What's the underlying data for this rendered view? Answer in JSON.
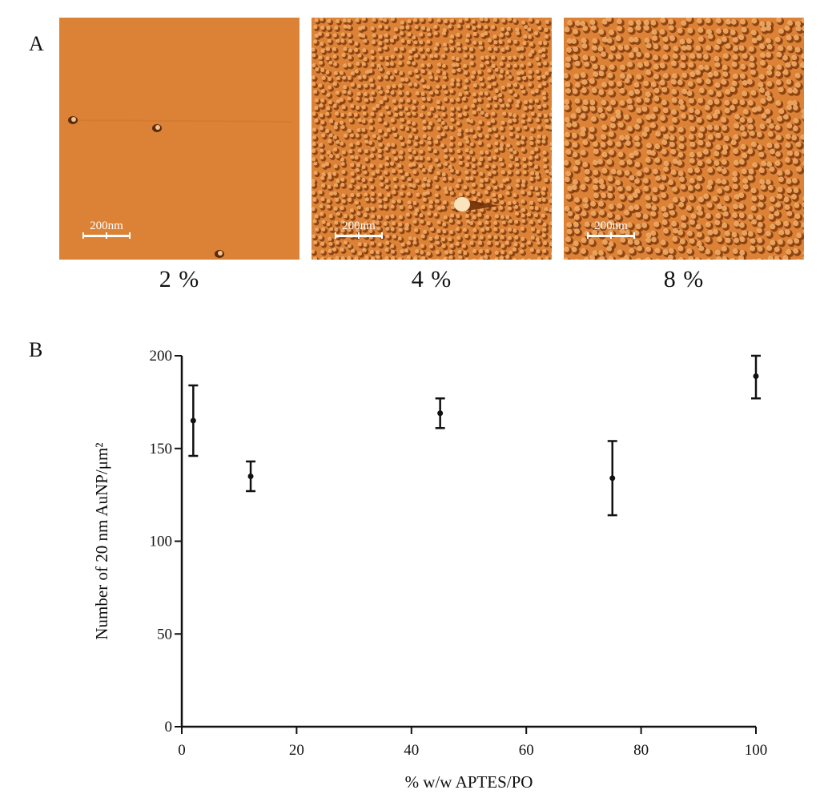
{
  "panel_a": {
    "letter": "A",
    "images": [
      {
        "caption": "2 %",
        "scale_label": "200nm",
        "texture": "sparse"
      },
      {
        "caption": "4 %",
        "scale_label": "200nm",
        "texture": "medium"
      },
      {
        "caption": "8 %",
        "scale_label": "200nm",
        "texture": "dense"
      }
    ],
    "image_color": "#dc8237"
  },
  "panel_b": {
    "letter": "B"
  },
  "chart_data": {
    "type": "scatter",
    "title": "",
    "xlabel": "% w/w APTES/PO",
    "ylabel": "Number of 20 nm AuNP/μm²",
    "xlim": [
      0,
      100
    ],
    "ylim": [
      0,
      200
    ],
    "xticks": [
      0,
      20,
      40,
      60,
      80,
      100
    ],
    "yticks": [
      0,
      50,
      100,
      150,
      200
    ],
    "grid": false,
    "series": [
      {
        "x": [
          2,
          12,
          45,
          75,
          100
        ],
        "y": [
          165,
          135,
          169,
          134,
          189
        ],
        "error_low": [
          146,
          127,
          161,
          114,
          177
        ],
        "error_high": [
          184,
          143,
          177,
          154,
          200
        ]
      }
    ],
    "marker_color": "#111111"
  }
}
